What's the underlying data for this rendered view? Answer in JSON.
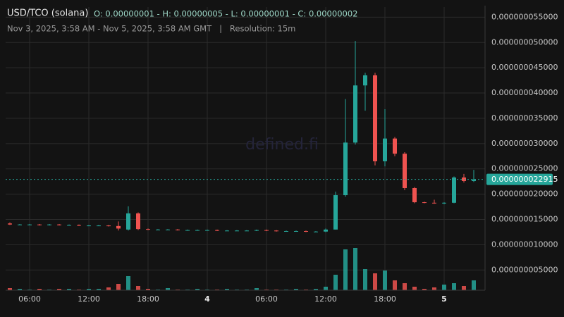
{
  "chart_data": {
    "type": "candlestick",
    "title": "USD/TCO (solana)",
    "ohlc_label": "O: 0.00000001 - H: 0.00000005 - L: 0.00000001 - C: 0.00000002",
    "subtitle": "Nov 3, 2025, 3:58 AM - Nov 5, 2025, 3:58 AM GMT   |   Resolution: 15m",
    "watermark": "defined.fi",
    "categories": [
      null,
      null,
      "06:00",
      null,
      null,
      null,
      null,
      null,
      "12:00",
      null,
      null,
      null,
      null,
      null,
      "18:00",
      null,
      null,
      null,
      null,
      null,
      "4",
      null,
      null,
      null,
      null,
      null,
      "06:00",
      null,
      null,
      null,
      null,
      null,
      "12:00",
      null,
      null,
      null,
      null,
      null,
      "18:00",
      null,
      null,
      null,
      null,
      null,
      "5",
      null,
      null,
      null
    ],
    "open": [
      1.42e-08,
      1.4e-08,
      1.4e-08,
      1.4e-08,
      1.39e-08,
      1.4e-08,
      1.39e-08,
      1.39e-08,
      1.38e-08,
      1.38e-08,
      1.38e-08,
      1.37e-08,
      1.3e-08,
      1.62e-08,
      1.31e-08,
      1.3e-08,
      1.3e-08,
      1.3e-08,
      1.29e-08,
      1.29e-08,
      1.29e-08,
      1.29e-08,
      1.28e-08,
      1.28e-08,
      1.28e-08,
      1.28e-08,
      1.29e-08,
      1.28e-08,
      1.27e-08,
      1.27e-08,
      1.27e-08,
      1.26e-08,
      1.26e-08,
      1.3e-08,
      1.98e-08,
      3.02e-08,
      4.15e-08,
      4.35e-08,
      2.65e-08,
      3.1e-08,
      2.8e-08,
      2.12e-08,
      1.84e-08,
      1.83e-08,
      1.82e-08,
      1.83e-08,
      2.33e-08,
      2.26e-08
    ],
    "high": [
      1.44e-08,
      1.41e-08,
      1.41e-08,
      1.41e-08,
      1.41e-08,
      1.41e-08,
      1.4e-08,
      1.4e-08,
      1.39e-08,
      1.39e-08,
      1.39e-08,
      1.46e-08,
      1.76e-08,
      1.64e-08,
      1.32e-08,
      1.31e-08,
      1.31e-08,
      1.31e-08,
      1.3e-08,
      1.3e-08,
      1.3e-08,
      1.3e-08,
      1.29e-08,
      1.29e-08,
      1.29e-08,
      1.3e-08,
      1.3e-08,
      1.29e-08,
      1.28e-08,
      1.28e-08,
      1.28e-08,
      1.27e-08,
      1.32e-08,
      2.05e-08,
      3.88e-08,
      5.03e-08,
      4.4e-08,
      4.4e-08,
      3.68e-08,
      3.13e-08,
      2.83e-08,
      2.14e-08,
      1.85e-08,
      1.89e-08,
      1.84e-08,
      2.35e-08,
      2.4e-08,
      2.48e-08
    ],
    "low": [
      1.39e-08,
      1.39e-08,
      1.39e-08,
      1.38e-08,
      1.38e-08,
      1.38e-08,
      1.38e-08,
      1.37e-08,
      1.37e-08,
      1.37e-08,
      1.36e-08,
      1.28e-08,
      1.28e-08,
      1.29e-08,
      1.29e-08,
      1.29e-08,
      1.29e-08,
      1.28e-08,
      1.28e-08,
      1.28e-08,
      1.28e-08,
      1.27e-08,
      1.27e-08,
      1.27e-08,
      1.27e-08,
      1.27e-08,
      1.27e-08,
      1.26e-08,
      1.26e-08,
      1.26e-08,
      1.25e-08,
      1.25e-08,
      1.25e-08,
      1.3e-08,
      1.95e-08,
      2.98e-08,
      3.65e-08,
      2.57e-08,
      2.55e-08,
      2.75e-08,
      2.08e-08,
      1.82e-08,
      1.82e-08,
      1.81e-08,
      1.8e-08,
      1.82e-08,
      2.23e-08,
      2.24e-08
    ],
    "close": [
      1.4e-08,
      1.4e-08,
      1.4e-08,
      1.39e-08,
      1.4e-08,
      1.39e-08,
      1.39e-08,
      1.38e-08,
      1.38e-08,
      1.38e-08,
      1.37e-08,
      1.32e-08,
      1.62e-08,
      1.31e-08,
      1.3e-08,
      1.3e-08,
      1.3e-08,
      1.29e-08,
      1.29e-08,
      1.29e-08,
      1.29e-08,
      1.28e-08,
      1.28e-08,
      1.28e-08,
      1.28e-08,
      1.29e-08,
      1.28e-08,
      1.27e-08,
      1.27e-08,
      1.27e-08,
      1.26e-08,
      1.26e-08,
      1.3e-08,
      1.98e-08,
      3.02e-08,
      4.15e-08,
      4.35e-08,
      2.65e-08,
      3.1e-08,
      2.8e-08,
      2.12e-08,
      1.84e-08,
      1.83e-08,
      1.82e-08,
      1.83e-08,
      2.33e-08,
      2.26e-08,
      2.29e-08
    ],
    "volume": [
      3,
      2,
      1,
      2,
      1,
      2,
      2,
      1,
      2,
      2,
      4,
      9,
      20,
      6,
      2,
      1,
      3,
      1,
      1,
      2,
      1,
      1,
      2,
      1,
      1,
      3,
      1,
      1,
      1,
      2,
      1,
      2,
      5,
      22,
      58,
      60,
      30,
      24,
      28,
      14,
      10,
      5,
      2,
      4,
      8,
      10,
      6,
      14
    ],
    "volume_lim": [
      0,
      100
    ],
    "up_color": "#26a69a",
    "down_color": "#ef5350",
    "ylim": [
      1e-09,
      5.7e-08
    ],
    "yticks": [
      {
        "value": 5e-09,
        "label": "0.000000005000"
      },
      {
        "value": 1e-08,
        "label": "0.000000010000"
      },
      {
        "value": 1.5e-08,
        "label": "0.000000015000"
      },
      {
        "value": 2e-08,
        "label": "0.000000020000"
      },
      {
        "value": 2.5e-08,
        "label": "0.000000025000"
      },
      {
        "value": 3e-08,
        "label": "0.000000030000"
      },
      {
        "value": 3.5e-08,
        "label": "0.000000035000"
      },
      {
        "value": 4e-08,
        "label": "0.000000040000"
      },
      {
        "value": 4.5e-08,
        "label": "0.000000045000"
      },
      {
        "value": 5e-08,
        "label": "0.000000050000"
      },
      {
        "value": 5.5e-08,
        "label": "0.000000055000"
      }
    ],
    "last_price": {
      "value": 2.2915e-08,
      "label": "0.000000022915"
    },
    "grid": true
  }
}
